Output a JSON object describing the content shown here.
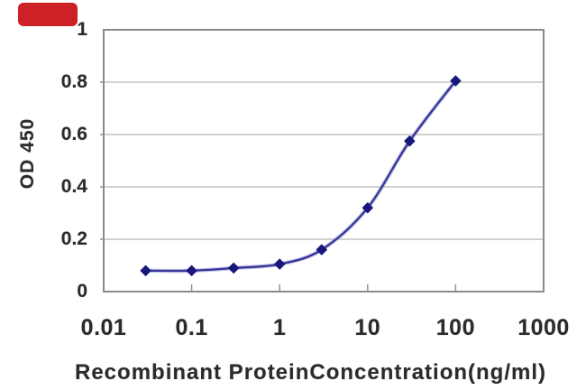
{
  "watermark": {
    "shape": "rounded-rectangle",
    "color": "#ce2127"
  },
  "chart_data": {
    "type": "line",
    "title": "",
    "xlabel": "Recombinant ProteinConcentration(ng/ml)",
    "ylabel": "OD 450",
    "x_scale": "log10",
    "xlim": [
      0.01,
      1000
    ],
    "ylim": [
      0,
      1
    ],
    "x_tick_values": [
      0.01,
      0.1,
      1,
      10,
      100,
      1000
    ],
    "x_tick_labels": [
      "0.01",
      "0.1",
      "1",
      "10",
      "100",
      "1000"
    ],
    "y_tick_values": [
      0,
      0.2,
      0.4,
      0.6,
      0.8,
      1
    ],
    "y_tick_labels": [
      "0",
      "0.2",
      "0.4",
      "0.6",
      "0.8",
      "1"
    ],
    "grid": "horizontal-gridlines",
    "legend": "none",
    "marker": "diamond",
    "series": [
      {
        "x": [
          0.03,
          0.1,
          0.3,
          1,
          3,
          10,
          30,
          100
        ],
        "y": [
          0.08,
          0.08,
          0.09,
          0.105,
          0.16,
          0.32,
          0.575,
          0.805
        ]
      }
    ],
    "colors": {
      "line": "#35359a",
      "line_halo": "#9a9ad0",
      "marker": "#17177c",
      "grid": "#c4c4c4",
      "frame": "#8a8a8a",
      "text": "#2b2b2b",
      "background": "#ffffff"
    }
  }
}
